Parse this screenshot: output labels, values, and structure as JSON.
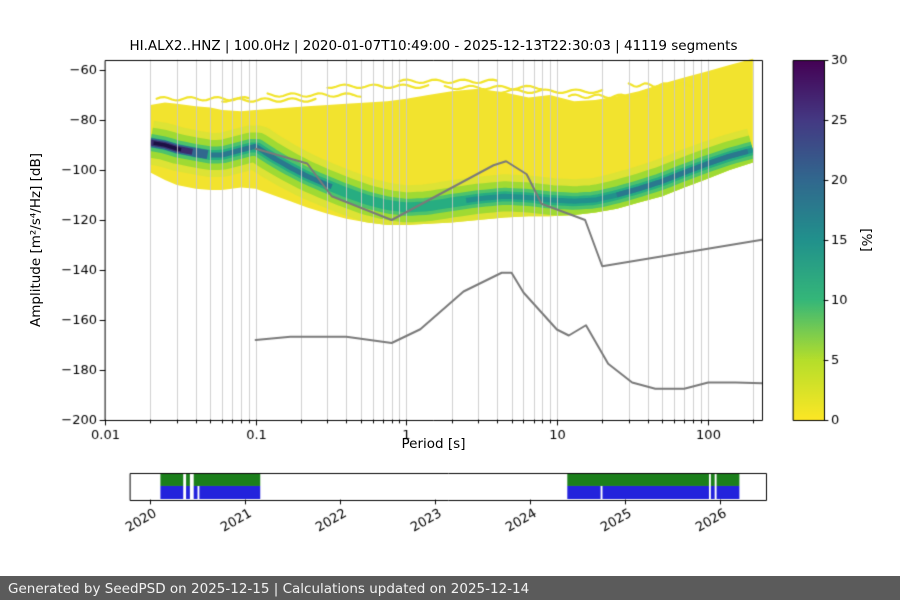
{
  "title": "HI.ALX2..HNZ | 100.0Hz | 2020-01-07T10:49:00 - 2025-12-13T22:30:03 | 41119 segments",
  "footer": {
    "text": "Generated by SeedPSD on 2025-12-15 | Calculations updated on 2025-12-14"
  },
  "chart_data": {
    "type": "heatmap",
    "title": "HI.ALX2..HNZ | 100.0Hz | 2020-01-07T10:49:00 - 2025-12-13T22:30:03 | 41119 segments",
    "xlabel": "Period [s]",
    "ylabel": "Amplitude [m²/s⁴/Hz] [dB]",
    "xscale": "log",
    "xlim": [
      0.01,
      230
    ],
    "ylim": [
      -200,
      -56
    ],
    "xticks": [
      0.01,
      0.1,
      1,
      10,
      100
    ],
    "xtick_labels": [
      "0.01",
      "0.1",
      "1",
      "10",
      "100"
    ],
    "yticks": [
      -200,
      -180,
      -160,
      -140,
      -120,
      -100,
      -80,
      -60
    ],
    "ytick_labels": [
      "−200",
      "−180",
      "−160",
      "−140",
      "−120",
      "−100",
      "−80",
      "−60"
    ],
    "grid_color": "#c8c8c8",
    "colorbar": {
      "label": "[%]",
      "min": 0,
      "max": 30,
      "ticks": [
        0,
        5,
        10,
        15,
        20,
        25,
        30
      ],
      "colormap": "viridis_r",
      "stops": [
        [
          0,
          "#fde725"
        ],
        [
          0.1667,
          "#b5de2b"
        ],
        [
          0.3333,
          "#35b779"
        ],
        [
          0.5,
          "#21918c"
        ],
        [
          0.6667,
          "#31688e"
        ],
        [
          0.8333,
          "#443983"
        ],
        [
          1,
          "#440154"
        ]
      ]
    },
    "ppsd": {
      "fill_color": "#f2e32e",
      "periods": [
        0.02,
        0.025,
        0.03,
        0.04,
        0.05,
        0.06,
        0.08,
        0.1,
        0.13,
        0.17,
        0.22,
        0.3,
        0.4,
        0.55,
        0.75,
        1.0,
        1.4,
        2.0,
        3.0,
        4.5,
        6.5,
        9.0,
        13.0,
        18.0,
        25.0,
        35.0,
        50.0,
        70.0,
        100.0,
        140.0,
        200.0
      ],
      "mode_db": [
        -89,
        -90,
        -91.5,
        -93,
        -94,
        -94,
        -92,
        -90.5,
        -95,
        -99,
        -102.5,
        -106,
        -109,
        -112,
        -114,
        -115,
        -114.5,
        -113,
        -111.5,
        -110.5,
        -111,
        -112,
        -112.5,
        -112,
        -110,
        -107.5,
        -104.5,
        -101,
        -97.5,
        -94.5,
        -92
      ],
      "upper_db": [
        -74,
        -73,
        -73.5,
        -74.5,
        -75,
        -76,
        -76.5,
        -76,
        -75.5,
        -75,
        -74.5,
        -74,
        -73.5,
        -73,
        -72.5,
        -71.5,
        -70,
        -68.5,
        -67.5,
        -69,
        -71,
        -70,
        -72.5,
        -72,
        -70.5,
        -68.5,
        -65.5,
        -63,
        -60.5,
        -58,
        -55.5
      ],
      "lower_db": [
        -101,
        -104,
        -106,
        -107.5,
        -108,
        -108,
        -107,
        -107.5,
        -110,
        -112.5,
        -115,
        -117.5,
        -119.5,
        -121,
        -122,
        -122,
        -121.5,
        -121,
        -120,
        -119,
        -118.5,
        -118.5,
        -118,
        -117,
        -115.5,
        -113,
        -110.5,
        -107,
        -103.5,
        -100,
        -97
      ],
      "band_layers": [
        {
          "pmin": 0.02,
          "pmax": 200,
          "color": "#dde335",
          "width": 44
        },
        {
          "pmin": 0.02,
          "pmax": 200,
          "color": "#9fda33",
          "width": 30
        },
        {
          "pmin": 0.02,
          "pmax": 200,
          "color": "#4ec36b",
          "width": 17
        },
        {
          "pmin": 0.02,
          "pmax": 200,
          "color": "#27ad81",
          "width": 10
        },
        {
          "pmin": 2.5,
          "pmax": 200,
          "color": "#21918c",
          "width": 5
        },
        {
          "pmin": 0.05,
          "pmax": 0.32,
          "color": "#2a788e",
          "width": 5
        },
        {
          "pmin": 25,
          "pmax": 185,
          "color": "#2a788e",
          "width": 5
        },
        {
          "pmin": 0.02,
          "pmax": 0.048,
          "color": "#31688e",
          "width": 9
        },
        {
          "pmin": 0.02,
          "pmax": 0.038,
          "color": "#3b2d6e",
          "width": 6
        },
        {
          "pmin": 0.021,
          "pmax": 0.032,
          "color": "#1c1044",
          "width": 3.5
        }
      ]
    },
    "streaks": {
      "color": "#f1e42c",
      "segments": [
        [
          0.022,
          0.09,
          -71.5
        ],
        [
          0.12,
          0.5,
          -70
        ],
        [
          0.3,
          1.4,
          -66.5
        ],
        [
          0.9,
          4,
          -64.5
        ],
        [
          1.8,
          8,
          -67
        ],
        [
          4,
          20,
          -68.5
        ],
        [
          12,
          40,
          -70.5
        ],
        [
          30,
          80,
          -66
        ],
        [
          0.06,
          0.25,
          -72
        ]
      ]
    },
    "noise_models": {
      "color": "#7a7a7a",
      "nhnm": [
        [
          0.1,
          -91.5
        ],
        [
          0.22,
          -97.4
        ],
        [
          0.32,
          -110.5
        ],
        [
          0.8,
          -120
        ],
        [
          3.8,
          -98.1
        ],
        [
          4.6,
          -96.5
        ],
        [
          6.3,
          -101.7
        ],
        [
          7.9,
          -113.5
        ],
        [
          15.4,
          -120
        ],
        [
          20,
          -138.5
        ],
        [
          230,
          -127.9
        ]
      ],
      "nlnm": [
        [
          0.1,
          -168
        ],
        [
          0.17,
          -166.7
        ],
        [
          0.4,
          -166.7
        ],
        [
          0.8,
          -169.2
        ],
        [
          1.24,
          -163.7
        ],
        [
          2.4,
          -148.6
        ],
        [
          4.3,
          -141.1
        ],
        [
          5,
          -141.1
        ],
        [
          6,
          -149
        ],
        [
          10,
          -163.8
        ],
        [
          12,
          -166.2
        ],
        [
          15.6,
          -162.1
        ],
        [
          21.9,
          -177.5
        ],
        [
          31.6,
          -185
        ],
        [
          45,
          -187.5
        ],
        [
          70,
          -187.5
        ],
        [
          101,
          -185
        ],
        [
          154,
          -185
        ],
        [
          230,
          -185.3
        ]
      ]
    }
  },
  "timeline": {
    "xlim": [
      2019.79,
      2026.48
    ],
    "ticks": [
      2020,
      2021,
      2022,
      2023,
      2024,
      2025,
      2026
    ],
    "tick_labels": [
      "2020",
      "2021",
      "2022",
      "2023",
      "2024",
      "2025",
      "2026"
    ],
    "green_color": "#1b7f1b",
    "blue_color": "#2323dc",
    "green_segments": [
      [
        2020.11,
        2020.35
      ],
      [
        2020.38,
        2020.42
      ],
      [
        2020.46,
        2021.16
      ],
      [
        2024.39,
        2025.88
      ],
      [
        2025.9,
        2025.94
      ],
      [
        2025.96,
        2026.2
      ]
    ],
    "blue_segments": [
      [
        2020.11,
        2020.35
      ],
      [
        2020.38,
        2020.42
      ],
      [
        2020.46,
        2020.5
      ],
      [
        2020.52,
        2021.16
      ],
      [
        2024.39,
        2024.74
      ],
      [
        2024.76,
        2025.88
      ],
      [
        2025.9,
        2025.94
      ],
      [
        2025.96,
        2026.2
      ]
    ]
  }
}
